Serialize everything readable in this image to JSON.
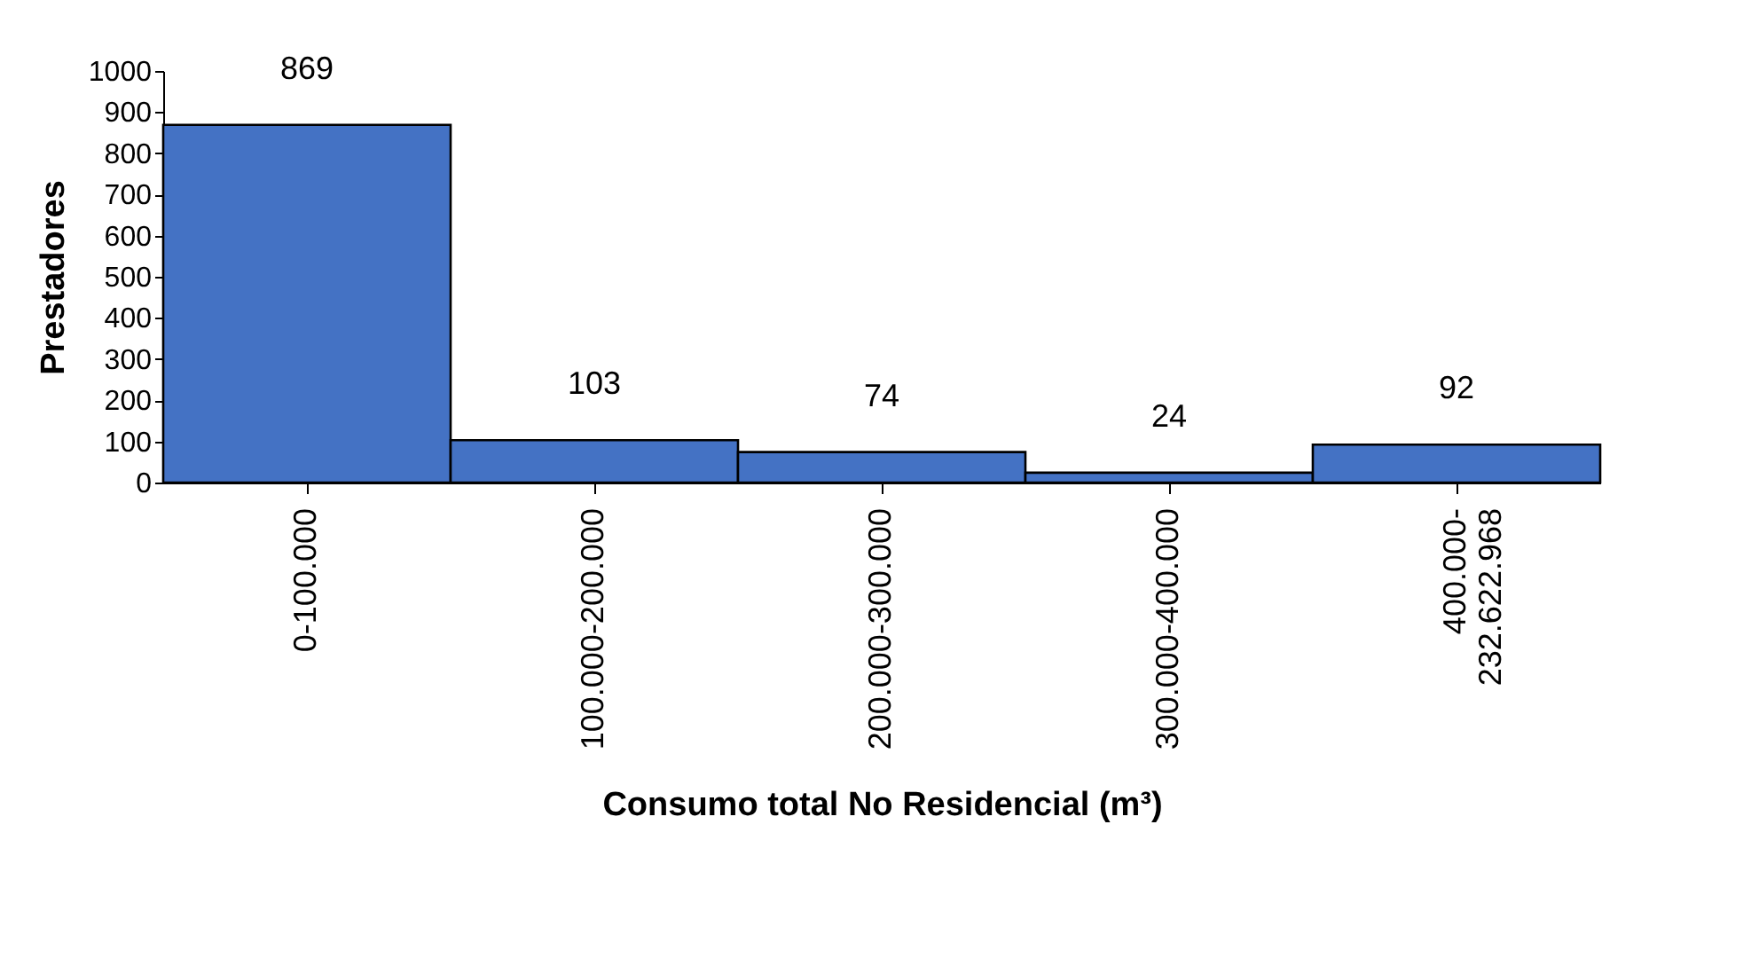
{
  "chart_data": {
    "type": "bar",
    "xlabel": "Consumo total No Residencial (m³)",
    "ylabel": "Prestadores",
    "categories": [
      "0-100.000",
      "100.000-200.000",
      "200.000-300.000",
      "300.000-400.000",
      "400.000-232.622.968"
    ],
    "values": [
      869,
      103,
      74,
      24,
      92
    ],
    "color": "#4472c4",
    "ylim": [
      0,
      1000
    ],
    "yticks": [
      0,
      100,
      200,
      300,
      400,
      500,
      600,
      700,
      800,
      900,
      1000
    ],
    "grid": false,
    "data_labels": true
  }
}
